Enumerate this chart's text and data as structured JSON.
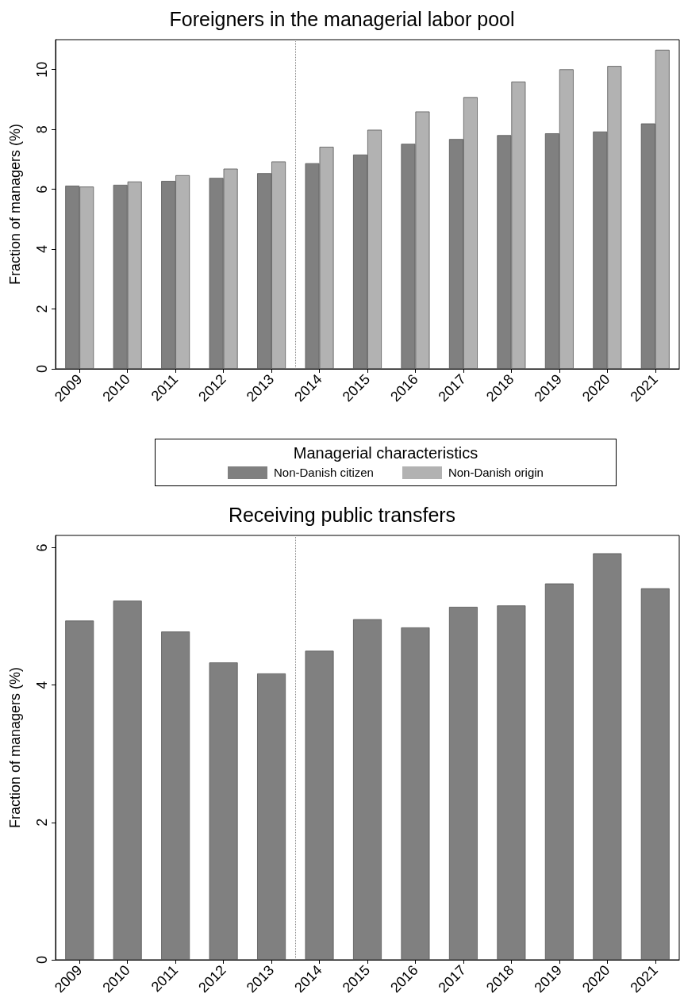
{
  "chart_data": [
    {
      "type": "bar",
      "title": "Foreigners in the managerial labor pool",
      "ylabel": "Fraction of managers (%)",
      "legend_title": "Managerial characteristics",
      "x": [
        2009,
        2010,
        2011,
        2012,
        2013,
        2014,
        2015,
        2016,
        2017,
        2018,
        2019,
        2020,
        2021
      ],
      "xlim": [
        2008.5,
        2021.5
      ],
      "xticks": [
        2009,
        2010,
        2011,
        2012,
        2013,
        2014,
        2015,
        2016,
        2017,
        2018,
        2019,
        2020,
        2021
      ],
      "ylim": [
        0,
        11
      ],
      "yticks": [
        0,
        2,
        4,
        6,
        8,
        10
      ],
      "series": [
        {
          "name": "Non-Danish citizen",
          "color": "#808080",
          "values": [
            6.12,
            6.15,
            6.28,
            6.38,
            6.54,
            6.87,
            7.16,
            7.52,
            7.68,
            7.81,
            7.87,
            7.93,
            8.2
          ]
        },
        {
          "name": "Non-Danish origin",
          "color": "#b2b2b2",
          "values": [
            6.09,
            6.26,
            6.47,
            6.69,
            6.93,
            7.42,
            7.99,
            8.6,
            9.08,
            9.6,
            10.01,
            10.12,
            10.66
          ]
        }
      ],
      "ref_lines": [
        {
          "axis": "x",
          "value": 2013.5,
          "line_style": "dotted",
          "color": "#888888"
        }
      ],
      "legend": "bottom",
      "grid": false
    },
    {
      "type": "bar",
      "title": "Receiving public transfers",
      "ylabel": "Fraction of managers (%)",
      "x": [
        2009,
        2010,
        2011,
        2012,
        2013,
        2014,
        2015,
        2016,
        2017,
        2018,
        2019,
        2020,
        2021
      ],
      "xlim": [
        2008.5,
        2021.5
      ],
      "xticks": [
        2009,
        2010,
        2011,
        2012,
        2013,
        2014,
        2015,
        2016,
        2017,
        2018,
        2019,
        2020,
        2021
      ],
      "ylim": [
        0,
        6.18
      ],
      "yticks": [
        0,
        2,
        4,
        6
      ],
      "series": [
        {
          "color": "#808080",
          "values": [
            4.94,
            5.23,
            4.78,
            4.33,
            4.17,
            4.5,
            4.96,
            4.84,
            5.14,
            5.16,
            5.48,
            5.92,
            5.41
          ]
        }
      ],
      "ref_lines": [
        {
          "axis": "x",
          "value": 2013.5,
          "line_style": "dotted",
          "color": "#888888"
        }
      ],
      "legend": false,
      "grid": false
    }
  ]
}
